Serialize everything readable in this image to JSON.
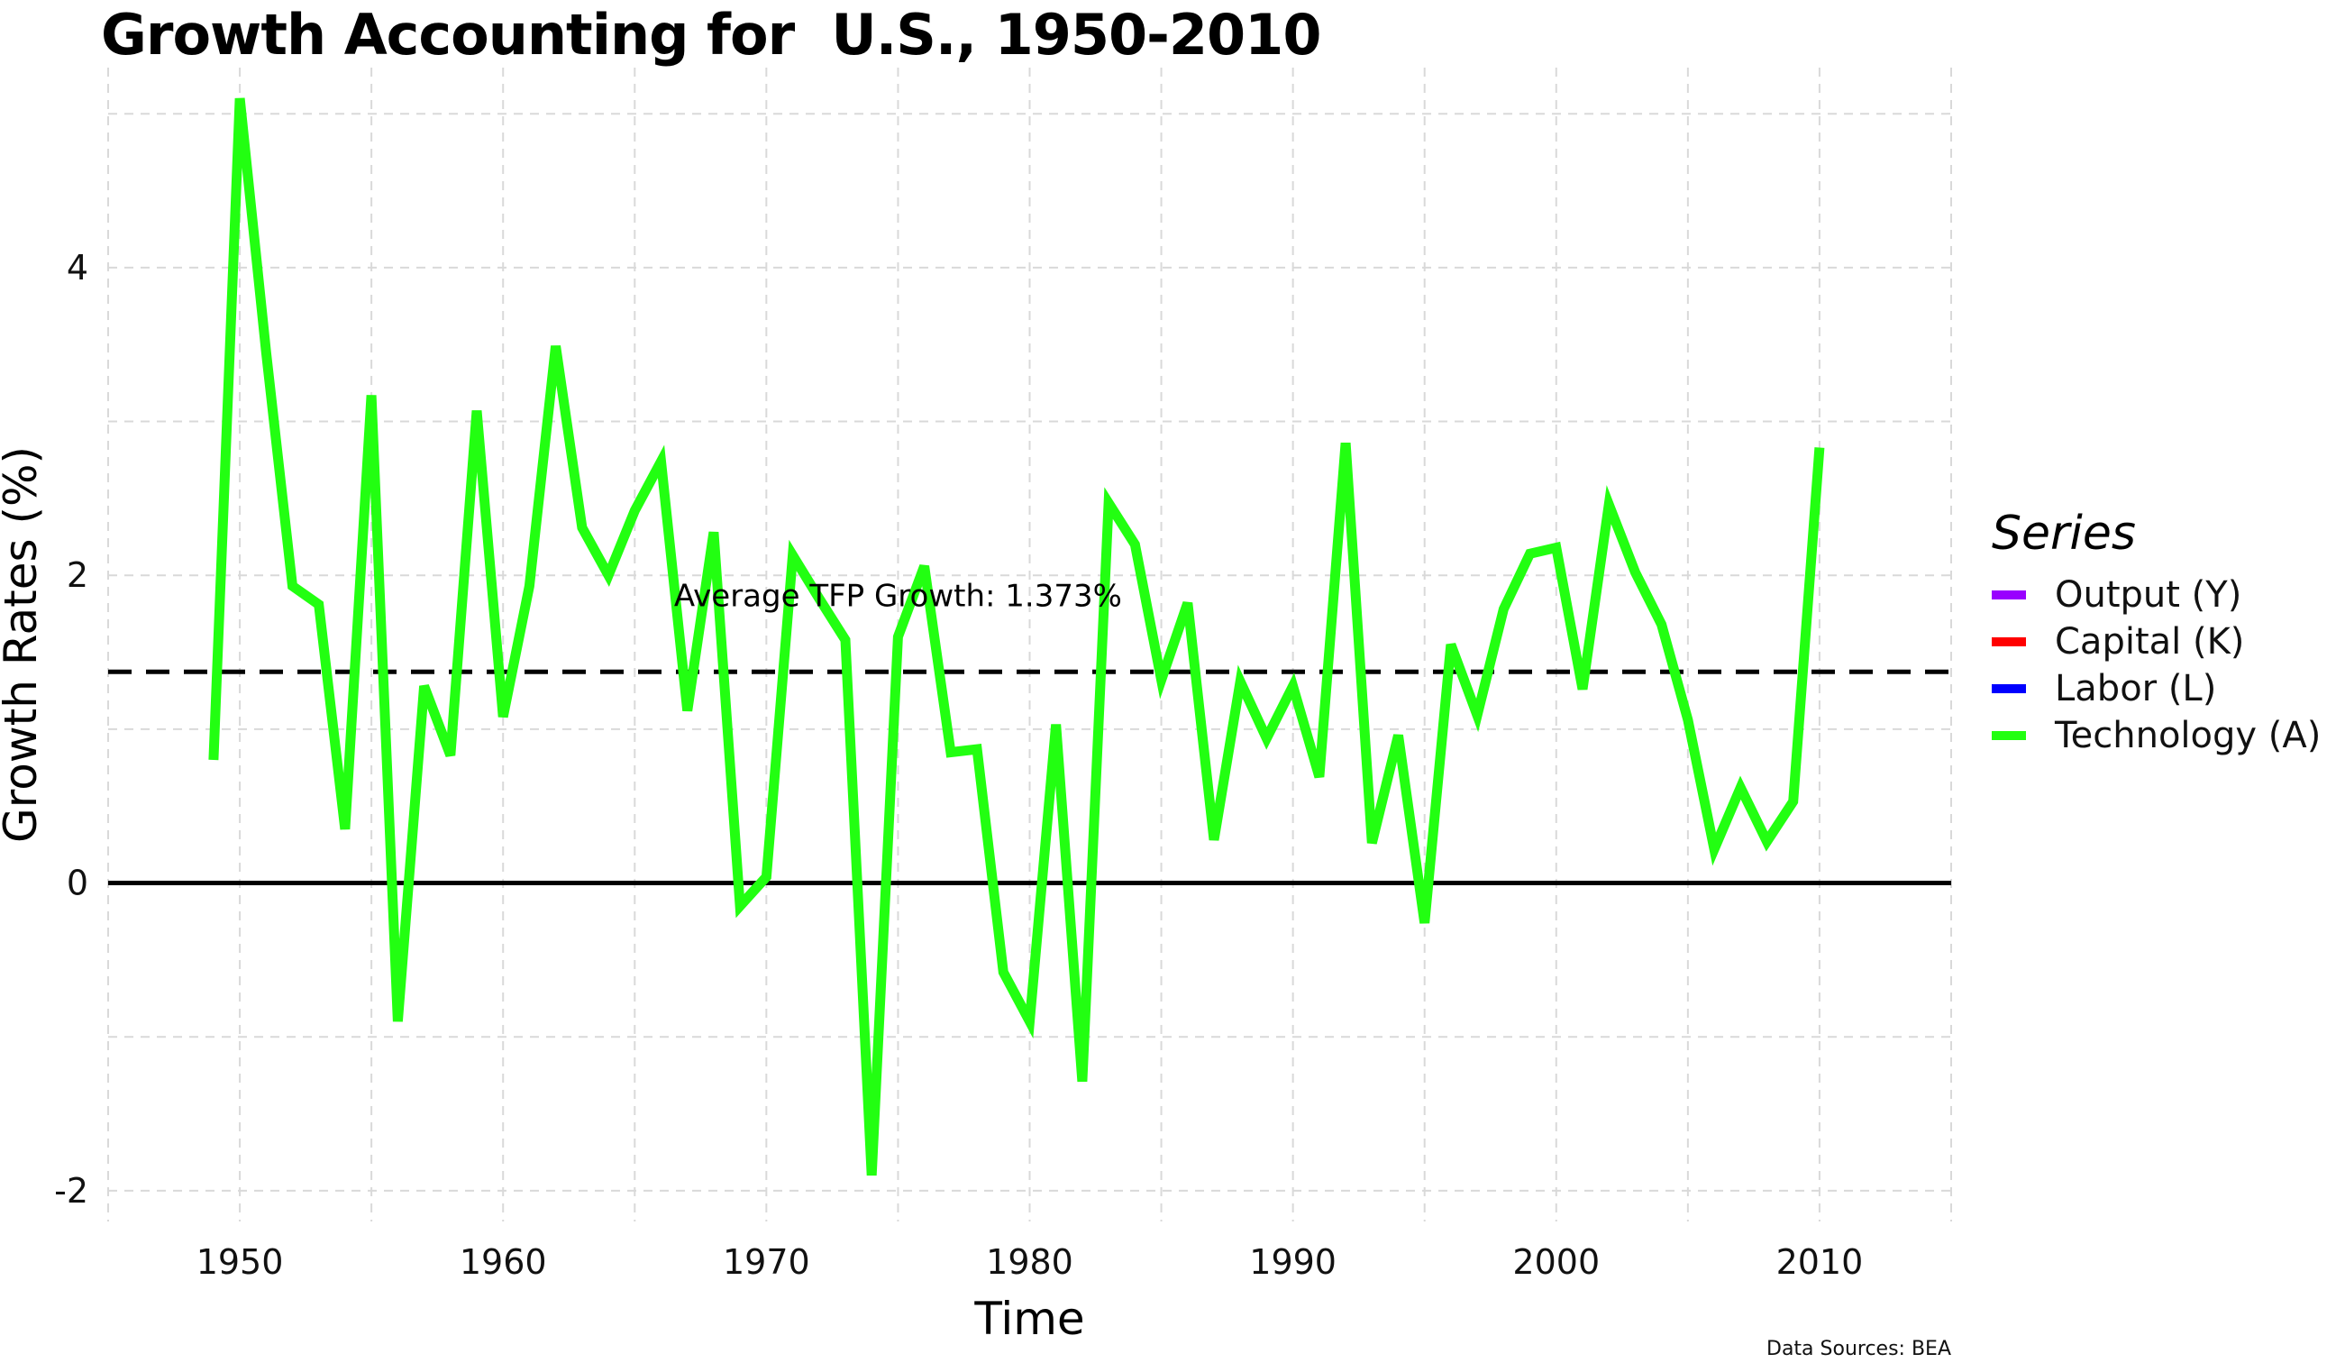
{
  "chart_data": {
    "type": "line",
    "title": "Growth Accounting for  U.S., 1950-2010",
    "xlabel": "Time",
    "ylabel": "Growth Rates (%)",
    "xlim": [
      1945,
      2015
    ],
    "ylim": [
      -2.2,
      5.3
    ],
    "x_ticks": [
      1950,
      1960,
      1970,
      1980,
      1990,
      2000,
      2010
    ],
    "y_ticks": [
      -2,
      0,
      2,
      4
    ],
    "grid": true,
    "legend_position": "right",
    "legend_title": "Series",
    "caption": "Data Sources: BEA",
    "hline_zero": 0,
    "average_line": {
      "value": 1.373,
      "style": "dashed",
      "label": "Average TFP Growth: 1.373%",
      "label_x": 1975,
      "label_y": 1.87
    },
    "series": [
      {
        "name": "Output (Y)",
        "color": "#9900ff",
        "values": []
      },
      {
        "name": "Capital (K)",
        "color": "#ff0000",
        "values": []
      },
      {
        "name": "Labor (L)",
        "color": "#0000ff",
        "values": []
      },
      {
        "name": "Technology (A)",
        "color": "#22ff11",
        "x": [
          1949,
          1950,
          1951,
          1952,
          1953,
          1954,
          1955,
          1956,
          1957,
          1958,
          1959,
          1960,
          1961,
          1962,
          1963,
          1964,
          1965,
          1966,
          1967,
          1968,
          1969,
          1970,
          1971,
          1972,
          1973,
          1974,
          1975,
          1976,
          1977,
          1978,
          1979,
          1980,
          1981,
          1982,
          1983,
          1984,
          1985,
          1986,
          1987,
          1988,
          1989,
          1990,
          1991,
          1992,
          1993,
          1994,
          1995,
          1996,
          1997,
          1998,
          1999,
          2000,
          2001,
          2002,
          2003,
          2004,
          2005,
          2006,
          2007,
          2008,
          2009,
          2010
        ],
        "values": [
          0.8,
          5.1,
          3.45,
          1.93,
          1.81,
          0.35,
          3.17,
          -0.9,
          1.28,
          0.83,
          3.07,
          1.08,
          1.93,
          3.49,
          2.31,
          2.0,
          2.42,
          2.74,
          1.12,
          2.28,
          -0.15,
          0.04,
          2.13,
          1.85,
          1.58,
          -1.9,
          1.6,
          2.06,
          0.85,
          0.87,
          -0.58,
          -0.9,
          1.03,
          -1.29,
          2.47,
          2.2,
          1.32,
          1.82,
          0.28,
          1.31,
          0.94,
          1.28,
          0.69,
          2.86,
          0.26,
          0.96,
          -0.26,
          1.55,
          1.09,
          1.78,
          2.14,
          2.18,
          1.26,
          2.46,
          2.02,
          1.68,
          1.06,
          0.22,
          0.62,
          0.27,
          0.53,
          2.83
        ]
      }
    ]
  }
}
